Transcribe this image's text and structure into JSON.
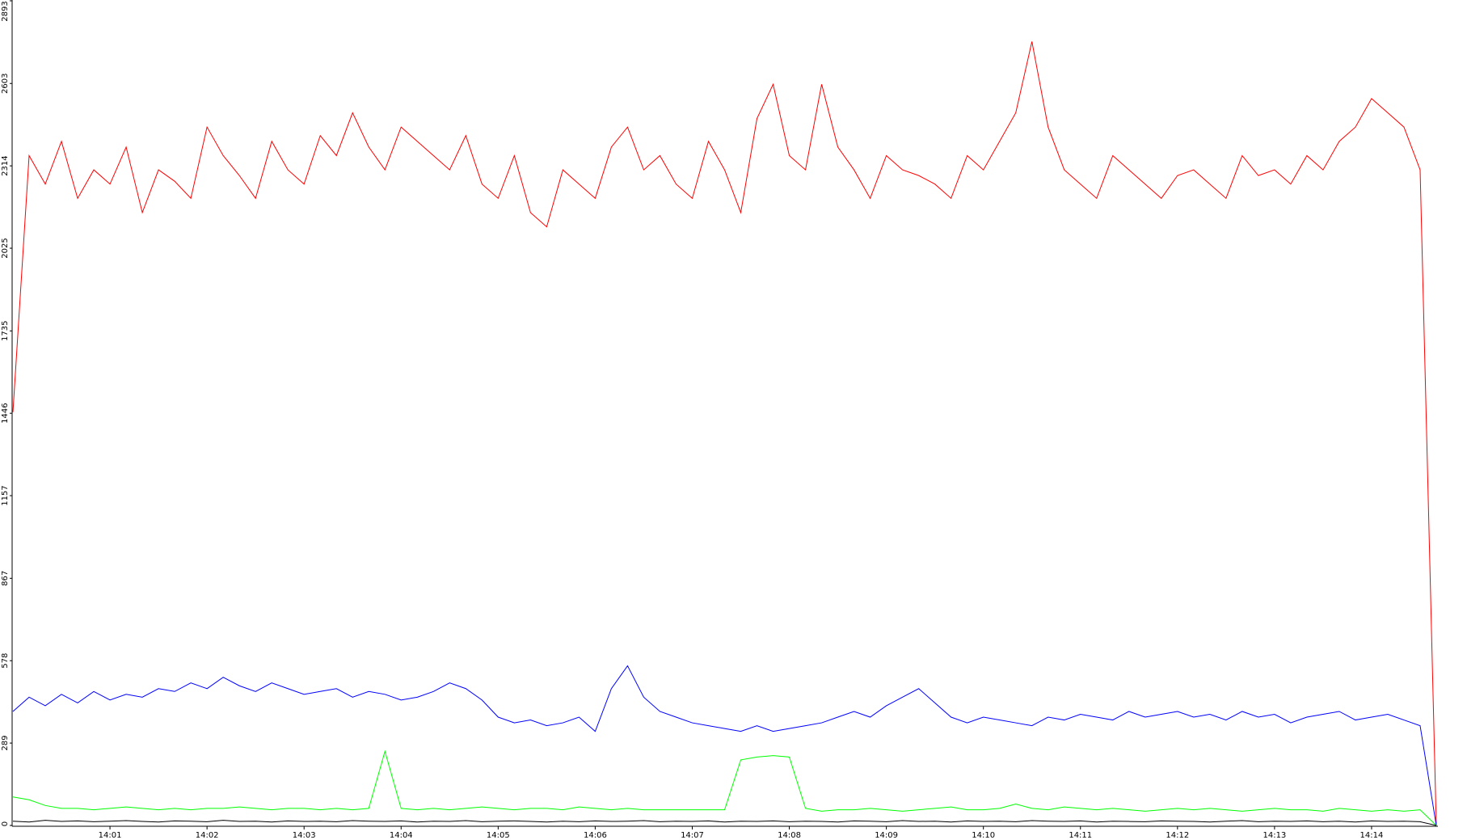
{
  "chart_data": {
    "type": "line",
    "categories": [
      null,
      null,
      null,
      null,
      null,
      null,
      "14:01",
      null,
      null,
      null,
      null,
      null,
      "14:02",
      null,
      null,
      null,
      null,
      null,
      "14:03",
      null,
      null,
      null,
      null,
      null,
      "14:04",
      null,
      null,
      null,
      null,
      null,
      "14:05",
      null,
      null,
      null,
      null,
      null,
      "14:06",
      null,
      null,
      null,
      null,
      null,
      "14:07",
      null,
      null,
      null,
      null,
      null,
      "14:08",
      null,
      null,
      null,
      null,
      null,
      "14:09",
      null,
      null,
      null,
      null,
      null,
      "14:10",
      null,
      null,
      null,
      null,
      null,
      "14:11",
      null,
      null,
      null,
      null,
      null,
      "14:12",
      null,
      null,
      null,
      null,
      null,
      "14:13",
      null,
      null,
      null,
      null,
      null,
      "14:14",
      null,
      null,
      null,
      null
    ],
    "series": [
      {
        "color": "#ff0000",
        "values": [
          1450,
          2350,
          2250,
          2400,
          2200,
          2300,
          2250,
          2380,
          2150,
          2300,
          2260,
          2200,
          2450,
          2350,
          2280,
          2200,
          2400,
          2300,
          2250,
          2420,
          2350,
          2500,
          2380,
          2300,
          2450,
          2400,
          2350,
          2300,
          2420,
          2250,
          2200,
          2350,
          2150,
          2100,
          2300,
          2250,
          2200,
          2380,
          2450,
          2300,
          2350,
          2250,
          2200,
          2400,
          2300,
          2150,
          2480,
          2600,
          2350,
          2300,
          2600,
          2380,
          2300,
          2200,
          2350,
          2300,
          2280,
          2250,
          2200,
          2350,
          2300,
          2400,
          2500,
          2750,
          2450,
          2300,
          2250,
          2200,
          2350,
          2300,
          2250,
          2200,
          2280,
          2300,
          2250,
          2200,
          2350,
          2280,
          2300,
          2250,
          2350,
          2300,
          2400,
          2450,
          2550,
          2500,
          2450,
          2300,
          0
        ]
      },
      {
        "color": "#0000ff",
        "values": [
          400,
          450,
          420,
          460,
          430,
          470,
          440,
          460,
          450,
          480,
          470,
          500,
          480,
          520,
          490,
          470,
          500,
          480,
          460,
          470,
          480,
          450,
          470,
          460,
          440,
          450,
          470,
          500,
          480,
          440,
          380,
          360,
          370,
          350,
          360,
          380,
          330,
          480,
          560,
          450,
          400,
          380,
          360,
          350,
          340,
          330,
          350,
          330,
          340,
          350,
          360,
          380,
          400,
          380,
          420,
          450,
          480,
          430,
          380,
          360,
          380,
          370,
          360,
          350,
          380,
          370,
          390,
          380,
          370,
          400,
          380,
          390,
          400,
          380,
          390,
          370,
          400,
          380,
          390,
          360,
          380,
          390,
          400,
          370,
          380,
          390,
          370,
          350,
          0
        ]
      },
      {
        "color": "#00ff00",
        "values": [
          100,
          90,
          70,
          60,
          60,
          55,
          60,
          65,
          60,
          55,
          60,
          55,
          60,
          60,
          65,
          60,
          55,
          60,
          60,
          55,
          60,
          55,
          60,
          260,
          60,
          55,
          60,
          55,
          60,
          65,
          60,
          55,
          60,
          60,
          55,
          65,
          60,
          55,
          60,
          55,
          55,
          55,
          55,
          55,
          55,
          230,
          240,
          245,
          240,
          60,
          50,
          55,
          55,
          60,
          55,
          50,
          55,
          60,
          65,
          55,
          55,
          60,
          75,
          60,
          55,
          65,
          60,
          55,
          60,
          55,
          50,
          55,
          60,
          55,
          60,
          55,
          50,
          55,
          60,
          55,
          55,
          50,
          60,
          55,
          50,
          55,
          50,
          55,
          0
        ]
      },
      {
        "color": "#000000",
        "values": [
          15,
          12,
          18,
          14,
          16,
          13,
          15,
          17,
          14,
          12,
          16,
          15,
          13,
          18,
          14,
          15,
          12,
          16,
          14,
          15,
          13,
          17,
          15,
          14,
          16,
          12,
          15,
          14,
          17,
          13,
          15,
          16,
          14,
          12,
          15,
          13,
          16,
          14,
          15,
          17,
          13,
          15,
          14,
          16,
          12,
          15,
          14,
          16,
          13,
          15,
          14,
          12,
          16,
          15,
          13,
          17,
          14,
          15,
          12,
          16,
          14,
          15,
          13,
          17,
          15,
          14,
          16,
          12,
          15,
          14,
          13,
          16,
          15,
          14,
          12,
          15,
          17,
          13,
          15,
          14,
          16,
          13,
          15,
          12,
          16,
          14,
          15,
          13,
          0
        ]
      }
    ],
    "ylim": [
      0,
      2893
    ],
    "yticks": [
      0,
      289,
      578,
      867,
      1157,
      1446,
      1735,
      2025,
      2314,
      2603,
      2893
    ]
  }
}
